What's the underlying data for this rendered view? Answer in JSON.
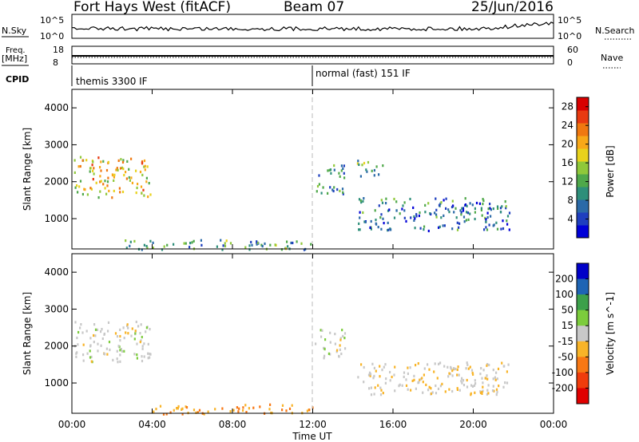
{
  "header": {
    "station": "Fort Hays West (fitACF)",
    "beam": "Beam 07",
    "date": "25/Jun/2016"
  },
  "status_panels": {
    "nsky_label": "N.Sky",
    "nsky_ticks": [
      "10^5",
      "10^0"
    ],
    "nsearch_label": "N.Search",
    "nsearch_ticks": [
      "10^5",
      "10^0"
    ],
    "freq_label": "Freq.",
    "freq_unit": "[MHz]",
    "freq_ticks": [
      "18",
      "8"
    ],
    "nave_label": "Nave",
    "nave_ticks": [
      "60",
      "0"
    ],
    "cpid_label": "CPID",
    "cpid_segments": [
      {
        "label": "themis 3300 IF",
        "start_hour": 0
      },
      {
        "label": "normal (fast) 151 IF",
        "start_hour": 12
      }
    ]
  },
  "chart_data": [
    {
      "type": "heatmap",
      "name": "power",
      "ylabel": "Slant Range [km]",
      "ylim": [
        180,
        4500
      ],
      "yticks": [
        1000,
        2000,
        3000,
        4000
      ],
      "xlim": [
        0,
        24
      ],
      "colorbar": {
        "title": "Power [dB]",
        "range": [
          0,
          30
        ],
        "ticks": [
          4,
          8,
          12,
          16,
          20,
          24,
          28
        ],
        "colors": [
          "#0000d8",
          "#1f3fbf",
          "#2b6aa8",
          "#2e8f7a",
          "#4fa84a",
          "#8fc83a",
          "#e8d21c",
          "#f8a818",
          "#f07810",
          "#e83a10",
          "#d80000"
        ]
      },
      "echo_regions": [
        {
          "t_start": 0.1,
          "t_end": 3.9,
          "range_low": 1600,
          "range_high": 2700,
          "intensity": 18
        },
        {
          "t_start": 12.1,
          "t_end": 13.6,
          "range_low": 1700,
          "range_high": 2500,
          "intensity": 10
        },
        {
          "t_start": 14.2,
          "t_end": 15.5,
          "range_low": 2150,
          "range_high": 2600,
          "intensity": 12
        },
        {
          "t_start": 14.2,
          "t_end": 21.8,
          "range_low": 700,
          "range_high": 1600,
          "intensity": 8
        },
        {
          "t_start": 2.5,
          "t_end": 12.0,
          "range_low": 180,
          "range_high": 450,
          "intensity": 10
        }
      ]
    },
    {
      "type": "heatmap",
      "name": "velocity",
      "ylabel": "Slant Range [km]",
      "xlabel": "Time UT",
      "ylim": [
        180,
        4500
      ],
      "yticks": [
        1000,
        2000,
        3000,
        4000
      ],
      "xlim": [
        0,
        24
      ],
      "xticks": [
        "00:00",
        "04:00",
        "08:00",
        "12:00",
        "16:00",
        "20:00",
        "00:00"
      ],
      "colorbar": {
        "title": "Velocity [m s^-1]",
        "tick_labels": [
          "200",
          "100",
          "50",
          "15",
          "-15",
          "-50",
          "-100",
          "-200"
        ],
        "colors": [
          "#0000c8",
          "#1e64b4",
          "#3ca04a",
          "#7ccc3c",
          "#c8c8c8",
          "#f8b428",
          "#f87814",
          "#f03c0c",
          "#e00000"
        ]
      },
      "echo_regions": [
        {
          "t_start": 0.1,
          "t_end": 3.9,
          "range_low": 1600,
          "range_high": 2700,
          "velocity": 0
        },
        {
          "t_start": 12.1,
          "t_end": 13.6,
          "range_low": 1700,
          "range_high": 2500,
          "velocity": 0
        },
        {
          "t_start": 14.2,
          "t_end": 21.8,
          "range_low": 700,
          "range_high": 1600,
          "velocity": -10
        },
        {
          "t_start": 4.0,
          "t_end": 12.0,
          "range_low": 180,
          "range_high": 450,
          "velocity": -50
        }
      ]
    }
  ]
}
